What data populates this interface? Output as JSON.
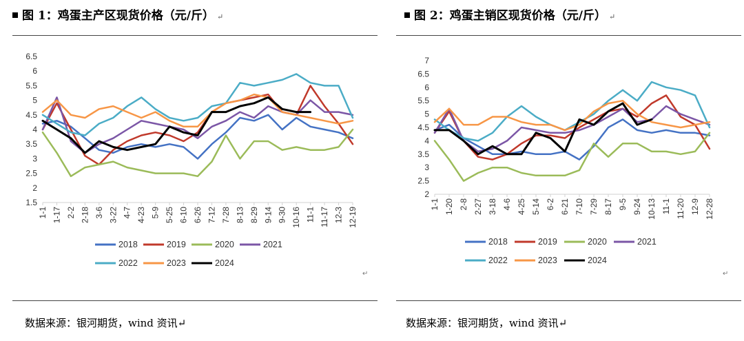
{
  "panels": [
    {
      "title": "图 1：鸡蛋主产区现货价格（元/斤）",
      "para_mark": "↵",
      "source": "数据来源：银河期货，wind 资讯↵",
      "chart_data": {
        "type": "line",
        "title": "鸡蛋主产区现货价格（元/斤）",
        "ylim": [
          1.5,
          6.5
        ],
        "yticks": [
          "1.5",
          "2",
          "2.5",
          "3",
          "3.5",
          "4",
          "4.5",
          "5",
          "5.5",
          "6",
          "6.5"
        ],
        "categories": [
          "1-1",
          "1-17",
          "2-2",
          "2-18",
          "3-6",
          "3-22",
          "4-7",
          "4-23",
          "5-9",
          "5-25",
          "6-10",
          "6-26",
          "7-12",
          "7-28",
          "8-13",
          "8-29",
          "9-14",
          "9-30",
          "10-16",
          "11-1",
          "11-17",
          "12-3",
          "12-19"
        ],
        "legend": [
          "2018",
          "2019",
          "2020",
          "2021",
          "2022",
          "2023",
          "2024"
        ],
        "series": [
          {
            "name": "2018",
            "color": "#4472C4",
            "values": [
              4.2,
              4.3,
              4.1,
              3.7,
              3.3,
              3.2,
              3.4,
              3.5,
              3.4,
              3.5,
              3.4,
              3.0,
              3.5,
              3.9,
              4.4,
              4.3,
              4.5,
              4.0,
              4.4,
              4.1,
              4.0,
              3.9,
              3.7
            ]
          },
          {
            "name": "2019",
            "color": "#C0392B",
            "values": [
              4.0,
              4.9,
              4.0,
              3.1,
              2.8,
              3.3,
              3.6,
              3.8,
              3.9,
              3.8,
              3.6,
              3.9,
              4.6,
              4.9,
              5.0,
              5.1,
              5.2,
              4.6,
              4.5,
              5.5,
              4.8,
              4.2,
              3.5
            ]
          },
          {
            "name": "2020",
            "color": "#9BBB59",
            "values": [
              3.9,
              3.2,
              2.4,
              2.7,
              2.8,
              2.9,
              2.7,
              2.6,
              2.5,
              2.5,
              2.5,
              2.4,
              2.9,
              3.8,
              3.0,
              3.6,
              3.6,
              3.3,
              3.4,
              3.3,
              3.3,
              3.4,
              4.0
            ]
          },
          {
            "name": "2021",
            "color": "#7B56A6",
            "values": [
              4.0,
              5.1,
              3.6,
              3.2,
              3.5,
              3.7,
              4.0,
              4.3,
              4.2,
              4.1,
              4.0,
              3.7,
              4.1,
              4.3,
              4.6,
              4.4,
              4.8,
              4.6,
              4.5,
              5.0,
              4.6,
              4.6,
              4.5
            ]
          },
          {
            "name": "2022",
            "color": "#4BACC6",
            "values": [
              4.5,
              4.2,
              3.9,
              3.8,
              4.2,
              4.4,
              4.8,
              5.1,
              4.7,
              4.4,
              4.3,
              4.4,
              4.8,
              4.9,
              5.6,
              5.5,
              5.6,
              5.7,
              5.9,
              5.6,
              5.5,
              5.5,
              4.4
            ]
          },
          {
            "name": "2023",
            "color": "#F79646",
            "values": [
              4.6,
              5.0,
              4.5,
              4.4,
              4.7,
              4.8,
              4.6,
              4.4,
              4.6,
              4.3,
              4.1,
              4.1,
              4.6,
              4.9,
              5.0,
              5.2,
              5.1,
              4.6,
              4.5,
              4.4,
              4.3,
              4.2,
              4.3
            ]
          },
          {
            "name": "2024",
            "color": "#000000",
            "values": [
              4.3,
              4.0,
              3.7,
              3.2,
              3.6,
              3.4,
              3.3,
              3.4,
              3.5,
              4.1,
              3.9,
              3.8,
              4.6,
              4.6,
              4.8,
              4.9,
              5.1,
              4.7,
              4.6,
              4.6,
              null,
              null,
              null
            ]
          }
        ]
      }
    },
    {
      "title": "图 2：鸡蛋主销区现货价格（元/斤）",
      "para_mark": "↵",
      "source": "数据来源：银河期货，wind 资讯↵",
      "chart_data": {
        "type": "line",
        "title": "鸡蛋主销区现货价格（元/斤）",
        "ylim": [
          2,
          7
        ],
        "yticks": [
          "2",
          "2.5",
          "3",
          "3.5",
          "4",
          "4.5",
          "5",
          "5.5",
          "6",
          "6.5",
          "7"
        ],
        "categories": [
          "1-1",
          "1-20",
          "2-8",
          "2-27",
          "3-18",
          "4-6",
          "4-25",
          "5-14",
          "6-2",
          "6-21",
          "7-10",
          "7-29",
          "8-17",
          "9-5",
          "9-24",
          "10-13",
          "11-1",
          "11-20",
          "12-9",
          "12-28"
        ],
        "legend": [
          "2018",
          "2019",
          "2020",
          "2021",
          "2022",
          "2023",
          "2024"
        ],
        "series": [
          {
            "name": "2018",
            "color": "#4472C4",
            "values": [
              4.4,
              4.6,
              4.1,
              3.8,
              3.5,
              3.5,
              3.6,
              3.5,
              3.5,
              3.6,
              3.3,
              3.8,
              4.5,
              4.8,
              4.4,
              4.3,
              4.4,
              4.3,
              4.3,
              4.2
            ]
          },
          {
            "name": "2019",
            "color": "#C0392B",
            "values": [
              4.3,
              5.1,
              4.0,
              3.4,
              3.3,
              3.5,
              3.9,
              4.2,
              4.2,
              4.1,
              4.5,
              4.8,
              5.1,
              5.2,
              4.9,
              5.4,
              5.7,
              4.9,
              4.6,
              3.7
            ]
          },
          {
            "name": "2020",
            "color": "#9BBB59",
            "values": [
              4.0,
              3.3,
              2.5,
              2.8,
              3.0,
              3.0,
              2.8,
              2.7,
              2.7,
              2.7,
              2.9,
              3.9,
              3.4,
              3.9,
              3.9,
              3.6,
              3.6,
              3.5,
              3.6,
              4.3
            ]
          },
          {
            "name": "2021",
            "color": "#7B56A6",
            "values": [
              4.3,
              5.2,
              4.0,
              3.6,
              3.7,
              4.0,
              4.5,
              4.4,
              4.3,
              4.3,
              4.4,
              4.6,
              4.9,
              5.2,
              4.7,
              4.8,
              5.3,
              5.0,
              4.8,
              4.6
            ]
          },
          {
            "name": "2022",
            "color": "#4BACC6",
            "values": [
              4.8,
              4.4,
              4.1,
              4.0,
              4.3,
              4.9,
              5.3,
              4.9,
              4.6,
              4.4,
              4.7,
              5.0,
              5.5,
              5.9,
              5.5,
              6.2,
              6.0,
              5.9,
              5.7,
              4.5
            ]
          },
          {
            "name": "2023",
            "color": "#F79646",
            "values": [
              4.7,
              5.2,
              4.6,
              4.6,
              4.9,
              4.9,
              4.7,
              4.6,
              4.6,
              4.4,
              4.6,
              5.1,
              5.4,
              5.5,
              5.0,
              4.7,
              4.6,
              4.5,
              4.6,
              4.7
            ]
          },
          {
            "name": "2024",
            "color": "#000000",
            "values": [
              4.4,
              4.4,
              4.0,
              3.5,
              3.8,
              3.5,
              3.5,
              4.3,
              4.1,
              3.6,
              4.8,
              4.6,
              5.1,
              5.4,
              4.6,
              4.8,
              null,
              null,
              null,
              null
            ]
          }
        ]
      }
    }
  ]
}
